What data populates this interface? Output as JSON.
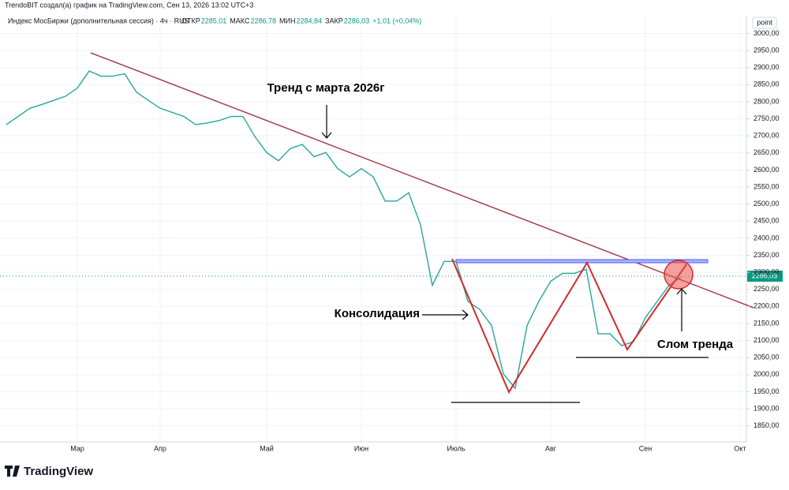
{
  "chart_data": {
    "type": "line",
    "source": "TrendoBIT создал(а) график на TradingView.com, Сен 13, 2026 13:02 UTC+3",
    "subtitle": "Индекс МосБиржи (дополнительная сессия) · 4ч · RUS",
    "quote": [
      [
        "ОТКР",
        "2285,01"
      ],
      [
        "МАКС",
        "2286,78"
      ],
      [
        "МИН",
        "2284,84"
      ],
      [
        "ЗАКР",
        "2286,03"
      ]
    ],
    "change": "+1,01 (+0,04%)",
    "unit": "point",
    "price_tag": "2286,03",
    "logo": "TradingView",
    "annotations": [
      "Тренд с марта 2026г",
      "Консолидация",
      "Слом тренда"
    ],
    "categories": [
      null,
      null,
      null,
      null,
      null,
      null,
      "Мар",
      null,
      null,
      null,
      null,
      null,
      null,
      "Апр",
      null,
      null,
      null,
      null,
      null,
      null,
      null,
      null,
      "Май",
      null,
      null,
      null,
      null,
      null,
      null,
      null,
      "Июн",
      null,
      null,
      null,
      null,
      null,
      null,
      null,
      "Июль",
      null,
      null,
      null,
      null,
      null,
      null,
      null,
      "Авг",
      null,
      null,
      null,
      null,
      null,
      null,
      null,
      "Сен",
      null,
      null,
      null,
      null,
      null,
      null,
      null,
      "Окт"
    ],
    "series": [
      {
        "name": "Индекс МосБиржи",
        "color": "#26a69a",
        "values": [
          2733,
          2757,
          2781,
          2792,
          2804,
          2816,
          2840,
          2890,
          2875,
          2875,
          2882,
          2828,
          2804,
          2781,
          2769,
          2757,
          2733,
          2738,
          2745,
          2757,
          2757,
          2698,
          2651,
          2627,
          2663,
          2675,
          2639,
          2651,
          2604,
          2580,
          2604,
          2580,
          2509,
          2509,
          2533,
          2439,
          2262,
          2332,
          2332,
          2215,
          2191,
          2144,
          2002,
          1960,
          2144,
          2215,
          2274,
          2297,
          2297,
          2309,
          2120,
          2120,
          2085,
          2097,
          2167,
          2215,
          2262,
          2286,
          null,
          null,
          null,
          null,
          null
        ]
      }
    ],
    "ylim": [
      1803,
      3052
    ],
    "yticks": [
      {
        "value": 1850,
        "label": "1850,00"
      },
      {
        "value": 1900,
        "label": "1900,00"
      },
      {
        "value": 1950,
        "label": "1950,00"
      },
      {
        "value": 2000,
        "label": "2000,00"
      },
      {
        "value": 2050,
        "label": "2050,00"
      },
      {
        "value": 2100,
        "label": "2100,00"
      },
      {
        "value": 2150,
        "label": "2150,00"
      },
      {
        "value": 2200,
        "label": "2200,00"
      },
      {
        "value": 2250,
        "label": "2250,00"
      },
      {
        "value": 2300,
        "label": "2300,00"
      },
      {
        "value": 2350,
        "label": "2350,00"
      },
      {
        "value": 2400,
        "label": "2400,00"
      },
      {
        "value": 2450,
        "label": "2450,00"
      },
      {
        "value": 2500,
        "label": "2500,00"
      },
      {
        "value": 2550,
        "label": "2550,00"
      },
      {
        "value": 2600,
        "label": "2600,00"
      },
      {
        "value": 2650,
        "label": "2650,00"
      },
      {
        "value": 2700,
        "label": "2700,00"
      },
      {
        "value": 2750,
        "label": "2750,00"
      },
      {
        "value": 2800,
        "label": "2800,00"
      },
      {
        "value": 2850,
        "label": "2850,00"
      },
      {
        "value": 2900,
        "label": "2900,00"
      },
      {
        "value": 2950,
        "label": "2950,00"
      },
      {
        "value": 3000,
        "label": "3000,00"
      }
    ],
    "grid": true
  }
}
